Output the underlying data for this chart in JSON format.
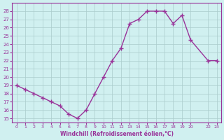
{
  "x": [
    0,
    1,
    2,
    3,
    4,
    5,
    6,
    7,
    8,
    9,
    10,
    11,
    12,
    13,
    14,
    15,
    16,
    17,
    18,
    19,
    20,
    22,
    23
  ],
  "y": [
    19,
    18.5,
    18,
    17.5,
    17,
    16.5,
    15.5,
    15,
    16,
    18,
    20,
    22,
    23.5,
    26.5,
    27,
    28,
    28,
    28,
    26.5,
    27.5,
    24.5,
    22,
    22
  ],
  "x_tick_labels": [
    "0",
    "1",
    "2",
    "3",
    "4",
    "5",
    "6",
    "7",
    "8",
    "9",
    "10",
    "11",
    "12",
    "13",
    "14",
    "15",
    "16",
    "17",
    "18",
    "19",
    "20",
    "22",
    "23"
  ],
  "y_ticks": [
    15,
    16,
    17,
    18,
    19,
    20,
    21,
    22,
    23,
    24,
    25,
    26,
    27,
    28
  ],
  "ylim": [
    14.5,
    29
  ],
  "xlim": [
    -0.5,
    23.5
  ],
  "line_color": "#993399",
  "marker_color": "#993399",
  "bg_color": "#d0f0f0",
  "grid_color": "#aacccc",
  "xlabel": "Windchill (Refroidissement éolien,°C)",
  "xlabel_color": "#993399"
}
